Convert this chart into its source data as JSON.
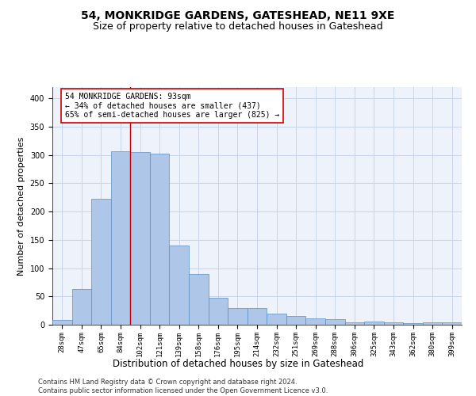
{
  "title": "54, MONKRIDGE GARDENS, GATESHEAD, NE11 9XE",
  "subtitle": "Size of property relative to detached houses in Gateshead",
  "xlabel": "Distribution of detached houses by size in Gateshead",
  "ylabel": "Number of detached properties",
  "categories": [
    "28sqm",
    "47sqm",
    "65sqm",
    "84sqm",
    "102sqm",
    "121sqm",
    "139sqm",
    "158sqm",
    "176sqm",
    "195sqm",
    "214sqm",
    "232sqm",
    "251sqm",
    "269sqm",
    "288sqm",
    "306sqm",
    "325sqm",
    "343sqm",
    "362sqm",
    "380sqm",
    "399sqm"
  ],
  "values": [
    8,
    63,
    222,
    307,
    305,
    302,
    140,
    90,
    47,
    30,
    30,
    19,
    15,
    11,
    10,
    4,
    5,
    4,
    3,
    4,
    4
  ],
  "bar_color": "#aec6e8",
  "bar_edge_color": "#5a8fc2",
  "vline_position": 3.5,
  "vline_color": "#cc0000",
  "annotation_line1": "54 MONKRIDGE GARDENS: 93sqm",
  "annotation_line2": "← 34% of detached houses are smaller (437)",
  "annotation_line3": "65% of semi-detached houses are larger (825) →",
  "annotation_box_color": "#ffffff",
  "annotation_box_edge": "#cc0000",
  "ylim": [
    0,
    420
  ],
  "yticks": [
    0,
    50,
    100,
    150,
    200,
    250,
    300,
    350,
    400
  ],
  "grid_color": "#c8d4e8",
  "background_color": "#eef2fa",
  "footnote": "Contains HM Land Registry data © Crown copyright and database right 2024.\nContains public sector information licensed under the Open Government Licence v3.0.",
  "title_fontsize": 10,
  "subtitle_fontsize": 9,
  "xlabel_fontsize": 8.5,
  "ylabel_fontsize": 8,
  "tick_fontsize": 6.5,
  "annotation_fontsize": 7,
  "footnote_fontsize": 6
}
